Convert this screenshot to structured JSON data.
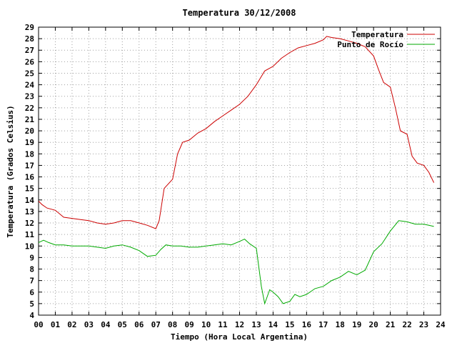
{
  "chart_data": {
    "type": "line",
    "title": "Temperatura 30/12/2008",
    "xlabel": "Tiempo (Hora Local Argentina)",
    "ylabel": "Temperatura (Grados Celsius)",
    "xlim": [
      0,
      24
    ],
    "ylim": [
      4,
      29
    ],
    "x_tick_labels": [
      "00",
      "01",
      "02",
      "03",
      "04",
      "05",
      "06",
      "07",
      "08",
      "09",
      "10",
      "11",
      "12",
      "13",
      "14",
      "15",
      "16",
      "17",
      "18",
      "19",
      "20",
      "21",
      "22",
      "23",
      "24"
    ],
    "y_tick_labels": [
      "4",
      "5",
      "6",
      "7",
      "8",
      "9",
      "10",
      "11",
      "12",
      "13",
      "14",
      "15",
      "16",
      "17",
      "18",
      "19",
      "20",
      "21",
      "22",
      "23",
      "24",
      "25",
      "26",
      "27",
      "28",
      "29"
    ],
    "grid": true,
    "legend_position": "top-right",
    "series": [
      {
        "name": "Temperatura",
        "color": "#cc0000",
        "x": [
          0.0,
          0.2,
          0.5,
          1.0,
          1.5,
          2.0,
          2.5,
          3.0,
          3.5,
          4.0,
          4.5,
          5.0,
          5.5,
          6.0,
          6.5,
          7.0,
          7.2,
          7.5,
          8.0,
          8.3,
          8.6,
          9.0,
          9.5,
          10.0,
          10.5,
          11.0,
          11.5,
          12.0,
          12.5,
          13.0,
          13.5,
          14.0,
          14.5,
          15.0,
          15.5,
          16.0,
          16.5,
          17.0,
          17.2,
          17.5,
          18.0,
          18.5,
          19.0,
          19.5,
          20.0,
          20.3,
          20.6,
          21.0,
          21.3,
          21.6,
          22.0,
          22.3,
          22.6,
          23.0,
          23.3,
          23.6
        ],
        "y": [
          13.9,
          13.6,
          13.3,
          13.1,
          12.5,
          12.4,
          12.3,
          12.2,
          12.0,
          11.9,
          12.0,
          12.2,
          12.2,
          12.0,
          11.8,
          11.5,
          12.2,
          15.0,
          15.8,
          18.0,
          19.0,
          19.2,
          19.8,
          20.2,
          20.8,
          21.3,
          21.8,
          22.3,
          23.0,
          24.0,
          25.2,
          25.6,
          26.3,
          26.8,
          27.2,
          27.4,
          27.6,
          27.9,
          28.2,
          28.1,
          28.0,
          27.8,
          27.6,
          27.3,
          26.5,
          25.3,
          24.2,
          23.8,
          22.0,
          20.0,
          19.7,
          17.8,
          17.2,
          17.0,
          16.4,
          15.5
        ]
      },
      {
        "name": "Punto de Rocío",
        "color": "#00aa00",
        "x": [
          0.0,
          0.3,
          0.6,
          1.0,
          1.5,
          2.0,
          2.5,
          3.0,
          3.5,
          4.0,
          4.5,
          5.0,
          5.5,
          6.0,
          6.5,
          7.0,
          7.3,
          7.6,
          8.0,
          8.5,
          9.0,
          9.5,
          10.0,
          10.5,
          11.0,
          11.5,
          12.0,
          12.3,
          12.6,
          13.0,
          13.3,
          13.5,
          13.8,
          14.0,
          14.3,
          14.6,
          15.0,
          15.3,
          15.6,
          16.0,
          16.5,
          17.0,
          17.5,
          18.0,
          18.5,
          19.0,
          19.5,
          20.0,
          20.5,
          21.0,
          21.5,
          22.0,
          22.5,
          23.0,
          23.3,
          23.6
        ],
        "y": [
          10.3,
          10.5,
          10.3,
          10.1,
          10.1,
          10.0,
          10.0,
          10.0,
          9.9,
          9.8,
          10.0,
          10.1,
          9.9,
          9.6,
          9.1,
          9.2,
          9.7,
          10.1,
          10.0,
          10.0,
          9.9,
          9.9,
          10.0,
          10.1,
          10.2,
          10.1,
          10.4,
          10.6,
          10.2,
          9.8,
          6.5,
          5.0,
          6.2,
          6.0,
          5.6,
          5.0,
          5.2,
          5.8,
          5.6,
          5.8,
          6.3,
          6.5,
          7.0,
          7.3,
          7.8,
          7.5,
          7.9,
          9.5,
          10.2,
          11.3,
          12.2,
          12.1,
          11.9,
          11.9,
          11.8,
          11.7
        ]
      }
    ]
  }
}
